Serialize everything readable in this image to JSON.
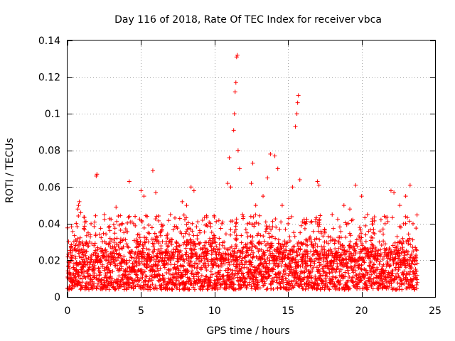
{
  "chart_data": {
    "type": "scatter",
    "title": "Day 116 of 2018, Rate Of TEC Index for receiver vbca",
    "xlabel": "GPS time / hours",
    "ylabel": "ROTI / TECUs",
    "xlim": [
      0,
      25
    ],
    "ylim": [
      0,
      0.14
    ],
    "xticks": [
      0,
      5,
      10,
      15,
      20,
      25
    ],
    "xtick_labels": [
      "0",
      "5",
      "10",
      "15",
      "20",
      "25"
    ],
    "yticks": [
      0,
      0.02,
      0.04,
      0.06,
      0.08,
      0.1,
      0.12,
      0.14
    ],
    "ytick_labels": [
      "0",
      "0.02",
      "0.04",
      "0.06",
      "0.08",
      "0.1",
      "0.12",
      "0.14"
    ],
    "grid": true,
    "marker": "plus",
    "color": "#ff0000",
    "series": [
      {
        "name": "ROTI",
        "points": [
          [
            0.1,
            0.004
          ],
          [
            0.2,
            0.012
          ],
          [
            0.3,
            0.02
          ],
          [
            0.45,
            0.026
          ],
          [
            0.6,
            0.015
          ],
          [
            0.8,
            0.022
          ],
          [
            0.7,
            0.048
          ],
          [
            0.75,
            0.05
          ],
          [
            0.8,
            0.052
          ],
          [
            0.9,
            0.046
          ],
          [
            1.0,
            0.03
          ],
          [
            1.2,
            0.018
          ],
          [
            1.4,
            0.035
          ],
          [
            1.6,
            0.04
          ],
          [
            1.8,
            0.028
          ],
          [
            1.95,
            0.066
          ],
          [
            2.0,
            0.067
          ],
          [
            2.2,
            0.02
          ],
          [
            2.5,
            0.045
          ],
          [
            2.8,
            0.038
          ],
          [
            3.0,
            0.024
          ],
          [
            3.3,
            0.049
          ],
          [
            3.6,
            0.03
          ],
          [
            4.0,
            0.02
          ],
          [
            4.2,
            0.063
          ],
          [
            4.5,
            0.04
          ],
          [
            4.8,
            0.025
          ],
          [
            5.0,
            0.058
          ],
          [
            5.2,
            0.055
          ],
          [
            5.5,
            0.03
          ],
          [
            5.8,
            0.069
          ],
          [
            6.0,
            0.057
          ],
          [
            6.3,
            0.035
          ],
          [
            6.6,
            0.02
          ],
          [
            7.0,
            0.045
          ],
          [
            7.4,
            0.03
          ],
          [
            7.8,
            0.052
          ],
          [
            8.1,
            0.05
          ],
          [
            8.4,
            0.06
          ],
          [
            8.6,
            0.058
          ],
          [
            9.0,
            0.035
          ],
          [
            9.5,
            0.025
          ],
          [
            10.0,
            0.03
          ],
          [
            10.5,
            0.04
          ],
          [
            10.9,
            0.062
          ],
          [
            11.0,
            0.076
          ],
          [
            11.1,
            0.06
          ],
          [
            11.3,
            0.091
          ],
          [
            11.35,
            0.1
          ],
          [
            11.4,
            0.112
          ],
          [
            11.45,
            0.117
          ],
          [
            11.5,
            0.131
          ],
          [
            11.55,
            0.132
          ],
          [
            11.6,
            0.08
          ],
          [
            11.7,
            0.07
          ],
          [
            11.9,
            0.045
          ],
          [
            12.2,
            0.035
          ],
          [
            12.5,
            0.062
          ],
          [
            12.6,
            0.073
          ],
          [
            12.8,
            0.05
          ],
          [
            13.0,
            0.04
          ],
          [
            13.3,
            0.055
          ],
          [
            13.6,
            0.065
          ],
          [
            13.8,
            0.078
          ],
          [
            14.1,
            0.077
          ],
          [
            14.3,
            0.07
          ],
          [
            14.6,
            0.05
          ],
          [
            15.0,
            0.04
          ],
          [
            15.3,
            0.06
          ],
          [
            15.5,
            0.093
          ],
          [
            15.6,
            0.1
          ],
          [
            15.65,
            0.106
          ],
          [
            15.7,
            0.11
          ],
          [
            15.8,
            0.064
          ],
          [
            16.2,
            0.04
          ],
          [
            16.6,
            0.03
          ],
          [
            17.0,
            0.063
          ],
          [
            17.1,
            0.061
          ],
          [
            17.5,
            0.035
          ],
          [
            18.0,
            0.045
          ],
          [
            18.4,
            0.03
          ],
          [
            18.8,
            0.05
          ],
          [
            19.2,
            0.048
          ],
          [
            19.6,
            0.061
          ],
          [
            20.0,
            0.055
          ],
          [
            20.4,
            0.045
          ],
          [
            20.8,
            0.035
          ],
          [
            21.2,
            0.03
          ],
          [
            21.6,
            0.04
          ],
          [
            22.0,
            0.058
          ],
          [
            22.2,
            0.057
          ],
          [
            22.6,
            0.05
          ],
          [
            23.0,
            0.055
          ],
          [
            23.3,
            0.061
          ],
          [
            23.5,
            0.04
          ],
          [
            23.7,
            0.01
          ]
        ],
        "dense_band": {
          "x_range": [
            0,
            23.8
          ],
          "y_range": [
            0.004,
            0.035
          ]
        }
      }
    ]
  }
}
